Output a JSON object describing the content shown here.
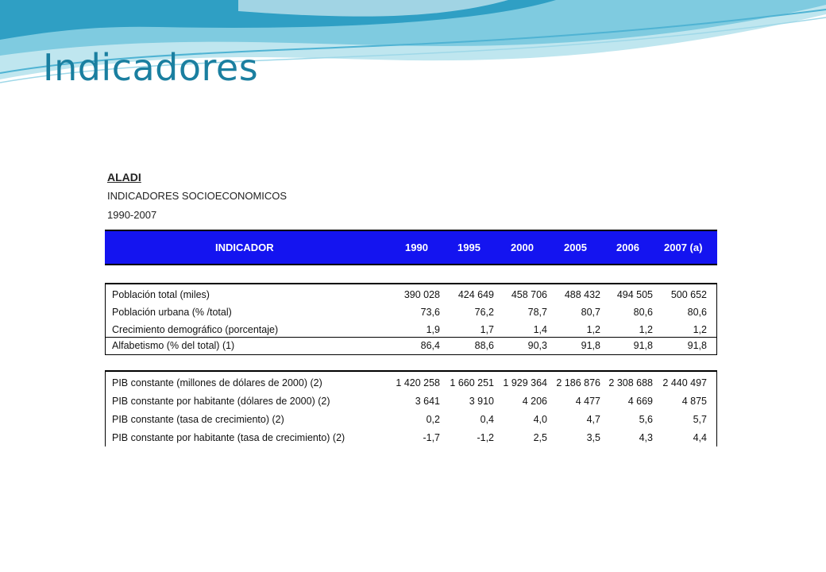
{
  "slide": {
    "title": "Indicadores"
  },
  "figure_header": {
    "org": "ALADI",
    "subtitle": "INDICADORES SOCIOECONOMICOS",
    "period": "1990-2007"
  },
  "table": {
    "columns": [
      "INDICADOR",
      "1990",
      "1995",
      "2000",
      "2005",
      "2006",
      "2007 (a)"
    ],
    "group1": [
      {
        "label": "Población total (miles)",
        "values": [
          "390 028",
          "424 649",
          "458 706",
          "488 432",
          "494 505",
          "500 652"
        ]
      },
      {
        "label": "Población urbana (% /total)",
        "values": [
          "73,6",
          "76,2",
          "78,7",
          "80,7",
          "80,6",
          "80,6"
        ]
      },
      {
        "label": "Crecimiento demográfico (porcentaje)",
        "values": [
          "1,9",
          "1,7",
          "1,4",
          "1,2",
          "1,2",
          "1,2"
        ]
      },
      {
        "label": "Alfabetismo (% del total) (1)",
        "values": [
          "86,4",
          "88,6",
          "90,3",
          "91,8",
          "91,8",
          "91,8"
        ]
      }
    ],
    "group2": [
      {
        "label": "PIB constante (millones de dólares de 2000) (2)",
        "values": [
          "1 420 258",
          "1 660 251",
          "1 929 364",
          "2 186 876",
          "2 308 688",
          "2 440 497"
        ]
      },
      {
        "label": "PIB constante por habitante (dólares de 2000) (2)",
        "values": [
          "3 641",
          "3 910",
          "4 206",
          "4 477",
          "4 669",
          "4 875"
        ]
      },
      {
        "label": "PIB constante (tasa de crecimiento) (2)",
        "values": [
          "0,2",
          "0,4",
          "4,0",
          "4,7",
          "5,6",
          "5,7"
        ]
      },
      {
        "label": "PIB constante por habitante (tasa de crecimiento) (2)",
        "values": [
          "-1,7",
          "-1,2",
          "2,5",
          "3,5",
          "4,3",
          "4,4"
        ]
      }
    ]
  }
}
